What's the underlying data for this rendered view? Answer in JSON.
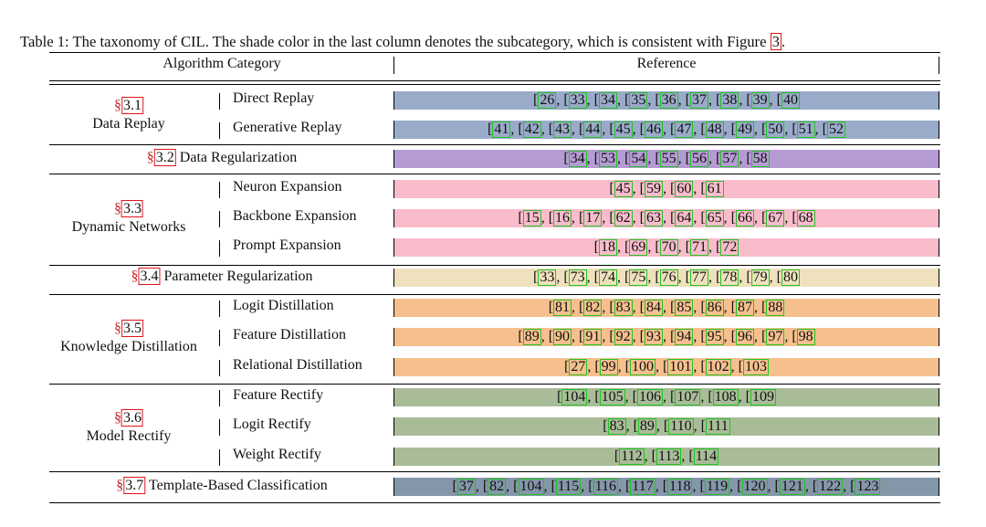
{
  "caption": {
    "prefix": "Table 1: The taxonomy of CIL. The shade color in the last column denotes the subcategory, which is consistent with Figure ",
    "figure_ref": "3",
    "suffix": "."
  },
  "header": {
    "col1": "Algorithm Category",
    "col2": "Reference"
  },
  "section_symbol": "§",
  "colors": {
    "replay": "#9aabc9",
    "regularization": "#b59bd3",
    "dynamic": "#f8bccb",
    "parameter": "#efe1bd",
    "distillation": "#f6c08e",
    "rectify": "#a9bc98",
    "template": "#8497a8",
    "ref_box": "#22c322",
    "sec_box": "#e0141c"
  },
  "groups": [
    {
      "id": "data-replay",
      "section": "3.1",
      "title": "Data Replay",
      "color": "replay",
      "rows": [
        {
          "label": "Direct Replay",
          "refs": [
            "26",
            "33",
            "34",
            "35",
            "36",
            "37",
            "38",
            "39",
            "40"
          ]
        },
        {
          "label": "Generative Replay",
          "refs": [
            "41",
            "42",
            "43",
            "44",
            "45",
            "46",
            "47",
            "48",
            "49",
            "50",
            "51",
            "52"
          ]
        }
      ]
    },
    {
      "id": "data-regularization",
      "section": "3.2",
      "title": "Data Regularization",
      "color": "regularization",
      "single": true,
      "rows": [
        {
          "label": "",
          "refs": [
            "34",
            "53",
            "54",
            "55",
            "56",
            "57",
            "58"
          ]
        }
      ]
    },
    {
      "id": "dynamic-networks",
      "section": "3.3",
      "title": "Dynamic Networks",
      "color": "dynamic",
      "rows": [
        {
          "label": "Neuron Expansion",
          "refs": [
            "45",
            "59",
            "60",
            "61"
          ]
        },
        {
          "label": "Backbone Expansion",
          "refs": [
            "15",
            "16",
            "17",
            "62",
            "63",
            "64",
            "65",
            "66",
            "67",
            "68"
          ]
        },
        {
          "label": "Prompt Expansion",
          "refs": [
            "18",
            "69",
            "70",
            "71",
            "72"
          ]
        }
      ]
    },
    {
      "id": "parameter-regularization",
      "section": "3.4",
      "title": "Parameter Regularization",
      "color": "parameter",
      "single": true,
      "rows": [
        {
          "label": "",
          "refs": [
            "33",
            "73",
            "74",
            "75",
            "76",
            "77",
            "78",
            "79",
            "80"
          ]
        }
      ]
    },
    {
      "id": "knowledge-distillation",
      "section": "3.5",
      "title": "Knowledge Distillation",
      "color": "distillation",
      "rows": [
        {
          "label": "Logit Distillation",
          "refs": [
            "81",
            "82",
            "83",
            "84",
            "85",
            "86",
            "87",
            "88"
          ]
        },
        {
          "label": "Feature Distillation",
          "refs": [
            "89",
            "90",
            "91",
            "92",
            "93",
            "94",
            "95",
            "96",
            "97",
            "98"
          ]
        },
        {
          "label": "Relational Distillation",
          "refs": [
            "27",
            "99",
            "100",
            "101",
            "102",
            "103"
          ]
        }
      ]
    },
    {
      "id": "model-rectify",
      "section": "3.6",
      "title": "Model Rectify",
      "color": "rectify",
      "rows": [
        {
          "label": "Feature Rectify",
          "refs": [
            "104",
            "105",
            "106",
            "107",
            "108",
            "109"
          ]
        },
        {
          "label": "Logit Rectify",
          "refs": [
            "83",
            "89",
            "110",
            "111"
          ]
        },
        {
          "label": "Weight Rectify",
          "refs": [
            "112",
            "113",
            "114"
          ]
        }
      ]
    },
    {
      "id": "template-based-classification",
      "section": "3.7",
      "title": "Template-Based Classification",
      "color": "template",
      "single": true,
      "rows": [
        {
          "label": "",
          "refs": [
            "37",
            "82",
            "104",
            "115",
            "116",
            "117",
            "118",
            "119",
            "120",
            "121",
            "122",
            "123"
          ]
        }
      ]
    }
  ]
}
